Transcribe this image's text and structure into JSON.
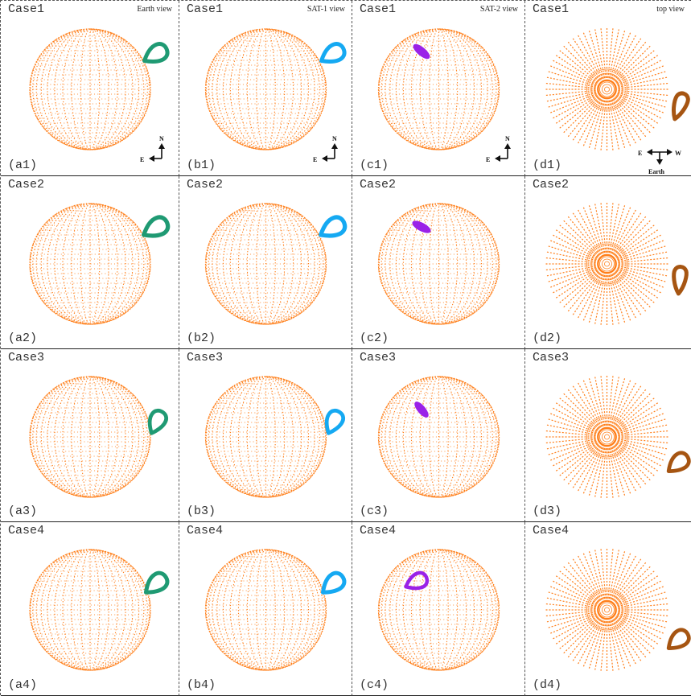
{
  "colors": {
    "sphere": "#ff7f1a",
    "earth_view_loop": "#1f9a73",
    "sat1_view_loop": "#15a9f2",
    "sat2_view_loop": "#9a22e8",
    "top_view_loop": "#a65512",
    "border": "#222222"
  },
  "columns": [
    {
      "id": "a",
      "view_label": "Earth view",
      "kind": "earth",
      "compass": [
        "N",
        "E"
      ]
    },
    {
      "id": "b",
      "view_label": "SAT-1 view",
      "kind": "sat1",
      "compass": [
        "N",
        "E"
      ]
    },
    {
      "id": "c",
      "view_label": "SAT-2 view",
      "kind": "sat2",
      "compass": [
        "N",
        "E"
      ]
    },
    {
      "id": "d",
      "view_label": "top view",
      "kind": "top",
      "compass": [
        "E",
        "W",
        "Earth"
      ]
    }
  ],
  "rows": [
    {
      "case_label": "Case1",
      "sub_labels": [
        "(a1)",
        "(b1)",
        "(c1)",
        "(d1)"
      ]
    },
    {
      "case_label": "Case2",
      "sub_labels": [
        "(a2)",
        "(b2)",
        "(c2)",
        "(d2)"
      ]
    },
    {
      "case_label": "Case3",
      "sub_labels": [
        "(a3)",
        "(b3)",
        "(c3)",
        "(d3)"
      ]
    },
    {
      "case_label": "Case4",
      "sub_labels": [
        "(a4)",
        "(b4)",
        "(c4)",
        "(d4)"
      ]
    }
  ]
}
